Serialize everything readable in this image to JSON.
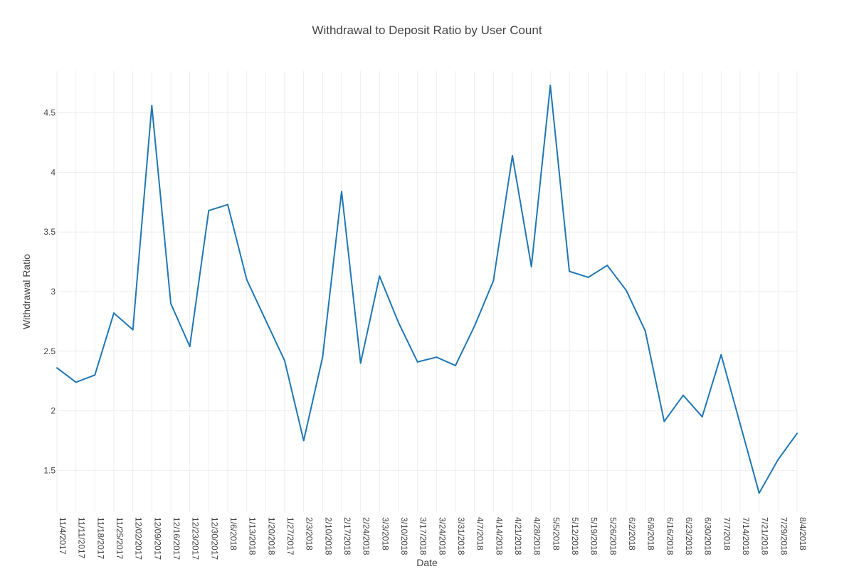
{
  "chart_data": {
    "type": "line",
    "title": "Withdrawal to Deposit Ratio by User Count",
    "xlabel": "Date",
    "ylabel": "Withdrawal Ratio",
    "grid": true,
    "legend": "none",
    "ylim": [
      1.15,
      4.85
    ],
    "yticks": [
      1.5,
      2,
      2.5,
      3,
      3.5,
      4,
      4.5
    ],
    "ytick_labels": [
      "1.5",
      "2",
      "2.5",
      "3",
      "3.5",
      "4",
      "4.5"
    ],
    "categories": [
      "11/4/2017",
      "11/11/2017",
      "11/18/2017",
      "11/25/2017",
      "12/02/2017",
      "12/09/2017",
      "12/16/2017",
      "12/23/2017",
      "12/30/2017",
      "1/6/2018",
      "1/13/2018",
      "1/20/2018",
      "1/27/2017",
      "2/3/2018",
      "2/10/2018",
      "2/17/2018",
      "2/24/2018",
      "3/3/2018",
      "3/10/2018",
      "3/17/2018",
      "3/24/2018",
      "3/31/2018",
      "4/7/2018",
      "4/14/2018",
      "4/21/2018",
      "4/28/2018",
      "5/5/2018",
      "5/12/2018",
      "5/19/2018",
      "5/26/2018",
      "6/2/2018",
      "6/9/2018",
      "6/16/2018",
      "6/23/2018",
      "6/30/2018",
      "7/7/2018",
      "7/14/2018",
      "7/21/2018",
      "7/29/2018",
      "8/4/2018"
    ],
    "series": [
      {
        "values": [
          2.36,
          2.24,
          2.3,
          2.82,
          2.68,
          4.56,
          2.9,
          2.54,
          3.68,
          3.73,
          3.1,
          2.76,
          2.42,
          1.75,
          2.45,
          3.84,
          2.4,
          3.13,
          2.74,
          2.41,
          2.45,
          2.38,
          2.71,
          3.09,
          4.14,
          3.21,
          4.73,
          3.17,
          3.12,
          3.22,
          3.01,
          2.67,
          1.91,
          2.13,
          1.95,
          2.47,
          1.89,
          1.31,
          1.59,
          1.81
        ]
      }
    ],
    "colors": {
      "line": "#1f77b4",
      "grid": "#eeeeee",
      "text": "#444444"
    }
  }
}
